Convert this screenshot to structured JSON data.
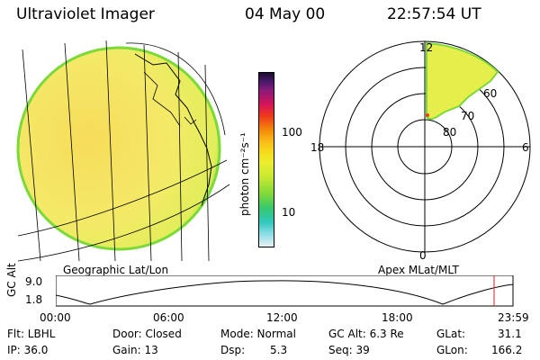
{
  "header": {
    "instrument": "Ultraviolet Imager",
    "date": "04 May 00",
    "time": "22:57:54 UT"
  },
  "colorbar": {
    "unit_label": "photon cm⁻²s⁻¹",
    "ticks": [
      "100",
      "10"
    ]
  },
  "polar_plot": {
    "labels": {
      "top": "12",
      "bottom": "0",
      "left": "18",
      "right": "6"
    },
    "lat_labels": [
      "60",
      "70",
      "80"
    ]
  },
  "left_caption": "Geographic Lat/Lon",
  "right_caption": "Apex MLat/MLT",
  "gc_plot": {
    "axis_label": "GC Alt",
    "y_ticks": [
      "9.0",
      "1.8"
    ],
    "x_ticks": [
      "00:00",
      "06:00",
      "12:00",
      "18:00",
      "23:59"
    ]
  },
  "info": {
    "flt": "Flt: LBHL",
    "ip": "IP: 36.0",
    "door": "Door: Closed",
    "gain": "Gain: 13",
    "mode": "Mode: Normal",
    "dsp_label": "Dsp:",
    "dsp_value": "5.3",
    "gcalt": "GC Alt: 6.3 Re",
    "seq": "Seq: 39",
    "glat_label": "GLat:",
    "glat_value": "31.1",
    "glon_label": "GLon:",
    "glon_value": "166.2"
  },
  "colors": {
    "disk_fill": "#f3ec6a",
    "disk_edge": "#7cd93a",
    "time_marker": "#d62020"
  }
}
